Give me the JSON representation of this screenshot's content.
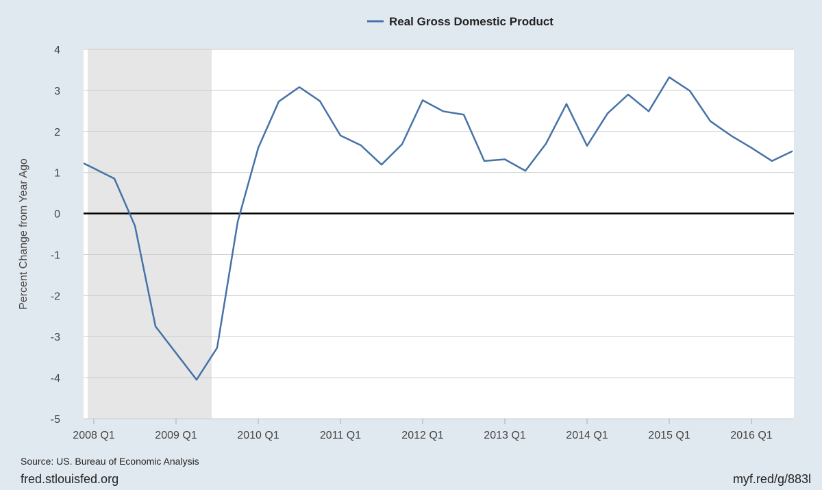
{
  "chart_data": {
    "type": "line",
    "title": "",
    "legend": [
      {
        "name": "Real Gross Domestic Product",
        "color": "#4572a7"
      }
    ],
    "legend_placement": "top-center",
    "xlabel": "",
    "ylabel": "Percent Change from Year Ago",
    "ylim": [
      -5,
      4
    ],
    "yticks": [
      4,
      3,
      2,
      1,
      0,
      -1,
      -2,
      -3,
      -4,
      -5
    ],
    "xlim": [
      2008.0,
      2016.5
    ],
    "xticks": [
      {
        "value": 2008.0,
        "label": "2008 Q1"
      },
      {
        "value": 2009.0,
        "label": "2009 Q1"
      },
      {
        "value": 2010.0,
        "label": "2010 Q1"
      },
      {
        "value": 2011.0,
        "label": "2011 Q1"
      },
      {
        "value": 2012.0,
        "label": "2012 Q1"
      },
      {
        "value": 2013.0,
        "label": "2013 Q1"
      },
      {
        "value": 2014.0,
        "label": "2014 Q1"
      },
      {
        "value": 2015.0,
        "label": "2015 Q1"
      },
      {
        "value": 2016.0,
        "label": "2016 Q1"
      }
    ],
    "recession": {
      "start": 2008.0,
      "end": 2009.5
    },
    "zero_line": 0,
    "grid": true,
    "series": [
      {
        "name": "Real Gross Domestic Product",
        "color": "#4572a7",
        "x": [
          2008.0,
          2008.25,
          2008.5,
          2008.75,
          2009.0,
          2009.25,
          2009.5,
          2009.75,
          2010.0,
          2010.25,
          2010.5,
          2010.75,
          2011.0,
          2011.25,
          2011.5,
          2011.75,
          2012.0,
          2012.25,
          2012.5,
          2012.75,
          2013.0,
          2013.25,
          2013.5,
          2013.75,
          2014.0,
          2014.25,
          2014.5,
          2014.75,
          2015.0,
          2015.25,
          2015.5,
          2015.75,
          2016.0,
          2016.25,
          2016.5
        ],
        "values": [
          1.1,
          0.85,
          -0.3,
          -2.75,
          -3.4,
          -4.05,
          -3.27,
          -0.2,
          1.6,
          2.73,
          3.08,
          2.74,
          1.9,
          1.66,
          1.19,
          1.69,
          2.76,
          2.49,
          2.41,
          1.28,
          1.32,
          1.04,
          1.7,
          2.67,
          1.65,
          2.44,
          2.9,
          2.49,
          3.32,
          2.99,
          2.25,
          1.9,
          1.6,
          1.28,
          1.52
        ]
      }
    ]
  },
  "footer": {
    "source": "Source: US. Bureau of Economic Analysis",
    "site": "fred.stlouisfed.org",
    "shortlink": "myf.red/g/883l"
  }
}
